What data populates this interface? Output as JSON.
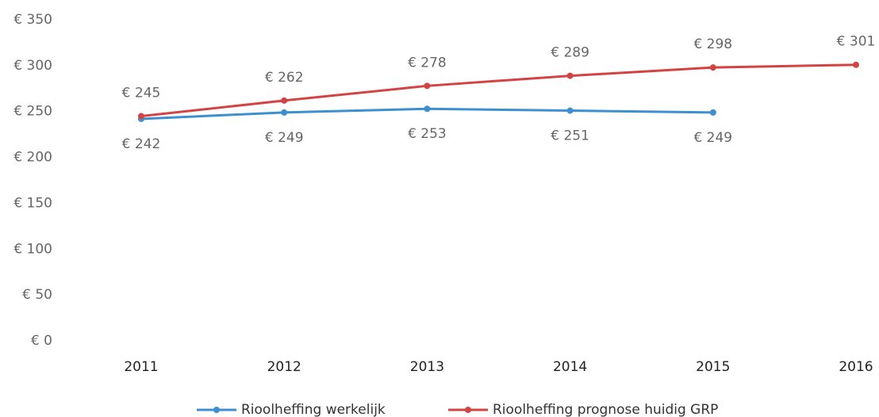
{
  "chart_data": {
    "type": "line",
    "categories": [
      "2011",
      "2012",
      "2013",
      "2014",
      "2015",
      "2016"
    ],
    "series": [
      {
        "name": "Rioolheffing werkelijk",
        "color": "#3d8fd1",
        "values": [
          242,
          249,
          253,
          251,
          249,
          null
        ],
        "value_labels": [
          "€ 242",
          "€ 249",
          "€ 253",
          "€ 251",
          "€ 249",
          null
        ]
      },
      {
        "name": "Rioolheffing prognose huidig GRP",
        "color": "#d44343",
        "values": [
          245,
          262,
          278,
          289,
          298,
          301
        ],
        "value_labels": [
          "€ 245",
          "€ 262",
          "€ 278",
          "€ 289",
          "€ 298",
          "€ 301"
        ]
      }
    ],
    "ylim": [
      0,
      350
    ],
    "yticks": [
      {
        "value": 0,
        "label": "€ 0"
      },
      {
        "value": 50,
        "label": "€ 50"
      },
      {
        "value": 100,
        "label": "€ 100"
      },
      {
        "value": 150,
        "label": "€ 150"
      },
      {
        "value": 200,
        "label": "€ 200"
      },
      {
        "value": 250,
        "label": "€ 250"
      },
      {
        "value": 300,
        "label": "€ 300"
      },
      {
        "value": 350,
        "label": "€ 350"
      }
    ],
    "grid": false,
    "legend": "bottom"
  }
}
